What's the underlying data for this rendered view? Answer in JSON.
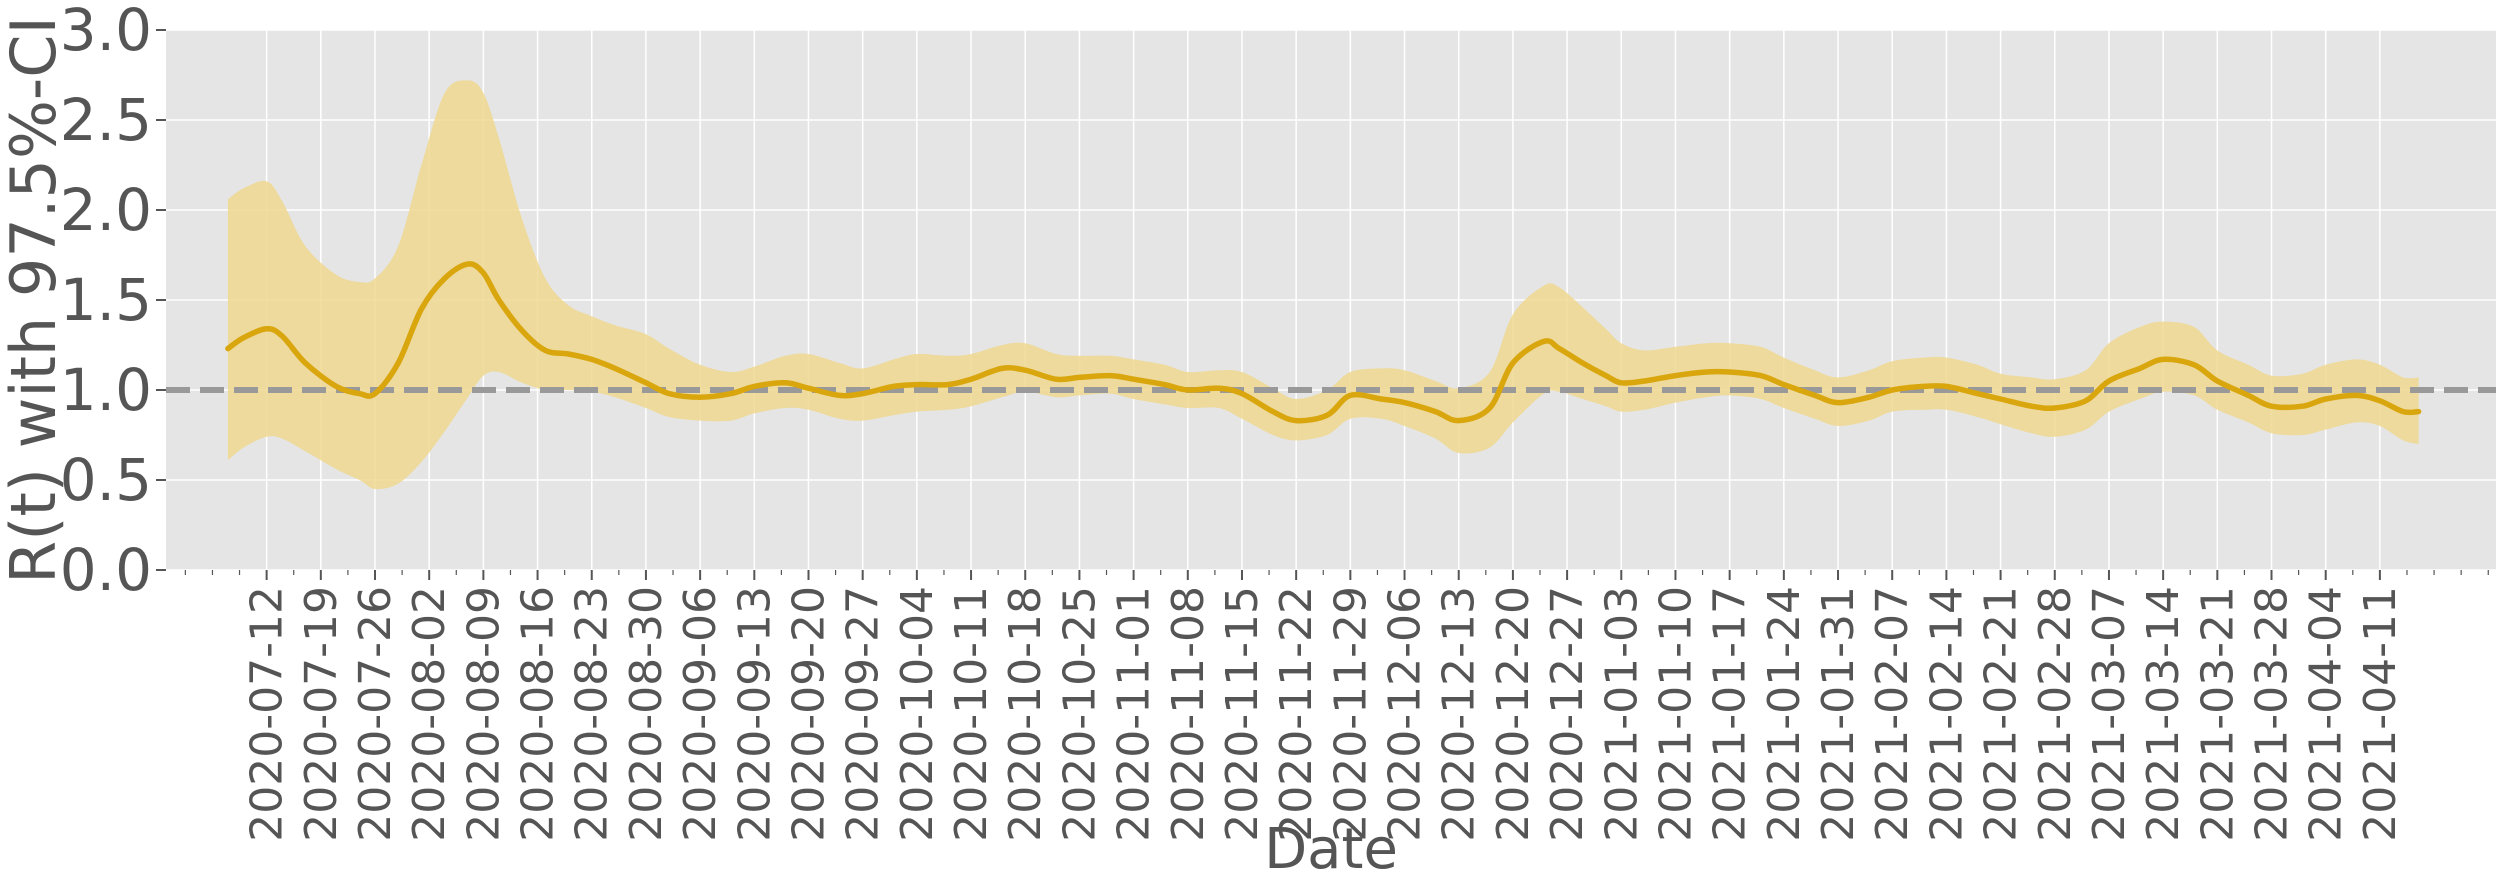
{
  "chart_data": {
    "type": "line",
    "title": "",
    "xlabel": "Date",
    "ylabel": "R(t) with 97.5%-CI",
    "ylim": [
      0,
      3.0
    ],
    "y_ticks": [
      "0.0",
      "0.5",
      "1.0",
      "1.5",
      "2.0",
      "2.5",
      "3.0"
    ],
    "x_ticks": [
      "2020-07-12",
      "2020-07-19",
      "2020-07-26",
      "2020-08-02",
      "2020-08-09",
      "2020-08-16",
      "2020-08-23",
      "2020-08-30",
      "2020-09-06",
      "2020-09-13",
      "2020-09-20",
      "2020-09-27",
      "2020-10-04",
      "2020-10-11",
      "2020-10-18",
      "2020-10-25",
      "2020-11-01",
      "2020-11-08",
      "2020-11-15",
      "2020-11-22",
      "2020-11-29",
      "2020-12-06",
      "2020-12-13",
      "2020-12-20",
      "2020-12-27",
      "2021-01-03",
      "2021-01-10",
      "2021-01-17",
      "2021-01-24",
      "2021-01-31",
      "2021-02-07",
      "2021-02-14",
      "2021-02-21",
      "2021-02-28",
      "2021-03-07",
      "2021-03-14",
      "2021-03-21",
      "2021-03-28",
      "2021-04-04",
      "2021-04-11"
    ],
    "xlim": [
      "2020-06-29",
      "2021-04-26"
    ],
    "reference_line": 1.0,
    "grid": true,
    "series": [
      {
        "x": [
          "2020-07-07",
          "2020-07-09",
          "2020-07-12",
          "2020-07-14",
          "2020-07-17",
          "2020-07-21",
          "2020-07-24",
          "2020-07-26",
          "2020-07-29",
          "2020-08-01",
          "2020-08-04",
          "2020-08-07",
          "2020-08-09",
          "2020-08-11",
          "2020-08-14",
          "2020-08-17",
          "2020-08-20",
          "2020-08-23",
          "2020-08-26",
          "2020-08-30",
          "2020-09-02",
          "2020-09-06",
          "2020-09-10",
          "2020-09-13",
          "2020-09-17",
          "2020-09-20",
          "2020-09-24",
          "2020-09-27",
          "2020-10-01",
          "2020-10-04",
          "2020-10-08",
          "2020-10-11",
          "2020-10-15",
          "2020-10-18",
          "2020-10-22",
          "2020-10-25",
          "2020-10-29",
          "2020-11-01",
          "2020-11-05",
          "2020-11-08",
          "2020-11-12",
          "2020-11-15",
          "2020-11-19",
          "2020-11-22",
          "2020-11-26",
          "2020-11-29",
          "2020-12-03",
          "2020-12-06",
          "2020-12-10",
          "2020-12-13",
          "2020-12-17",
          "2020-12-20",
          "2020-12-24",
          "2020-12-26",
          "2020-12-29",
          "2021-01-01",
          "2021-01-03",
          "2021-01-06",
          "2021-01-10",
          "2021-01-14",
          "2021-01-17",
          "2021-01-21",
          "2021-01-24",
          "2021-01-28",
          "2021-01-31",
          "2021-02-04",
          "2021-02-07",
          "2021-02-11",
          "2021-02-14",
          "2021-02-18",
          "2021-02-21",
          "2021-02-25",
          "2021-02-28",
          "2021-03-04",
          "2021-03-07",
          "2021-03-11",
          "2021-03-14",
          "2021-03-18",
          "2021-03-21",
          "2021-03-25",
          "2021-03-28",
          "2021-04-01",
          "2021-04-04",
          "2021-04-08",
          "2021-04-11",
          "2021-04-14",
          "2021-04-16"
        ],
        "y": [
          1.23,
          1.29,
          1.34,
          1.3,
          1.15,
          1.02,
          0.98,
          0.98,
          1.15,
          1.45,
          1.62,
          1.7,
          1.65,
          1.5,
          1.33,
          1.22,
          1.2,
          1.17,
          1.12,
          1.04,
          0.98,
          0.96,
          0.98,
          1.02,
          1.04,
          1.01,
          0.97,
          0.98,
          1.02,
          1.03,
          1.03,
          1.06,
          1.12,
          1.11,
          1.06,
          1.07,
          1.08,
          1.06,
          1.03,
          1.0,
          1.01,
          0.98,
          0.88,
          0.83,
          0.86,
          0.97,
          0.95,
          0.93,
          0.88,
          0.83,
          0.9,
          1.15,
          1.27,
          1.23,
          1.15,
          1.08,
          1.04,
          1.05,
          1.08,
          1.1,
          1.1,
          1.08,
          1.03,
          0.97,
          0.93,
          0.96,
          1.0,
          1.02,
          1.02,
          0.98,
          0.95,
          0.91,
          0.9,
          0.94,
          1.05,
          1.12,
          1.17,
          1.14,
          1.05,
          0.97,
          0.91,
          0.91,
          0.95,
          0.97,
          0.94,
          0.88,
          0.88
        ],
        "lower": [
          0.61,
          0.68,
          0.74,
          0.73,
          0.66,
          0.56,
          0.5,
          0.45,
          0.48,
          0.6,
          0.77,
          0.96,
          1.08,
          1.1,
          1.04,
          1.0,
          1.0,
          0.99,
          0.96,
          0.9,
          0.85,
          0.83,
          0.83,
          0.87,
          0.9,
          0.89,
          0.84,
          0.83,
          0.86,
          0.88,
          0.89,
          0.91,
          0.96,
          0.99,
          0.96,
          0.97,
          0.98,
          0.95,
          0.92,
          0.9,
          0.9,
          0.84,
          0.75,
          0.72,
          0.75,
          0.84,
          0.84,
          0.8,
          0.73,
          0.65,
          0.68,
          0.82,
          0.98,
          0.99,
          0.95,
          0.91,
          0.88,
          0.89,
          0.93,
          0.96,
          0.97,
          0.95,
          0.9,
          0.84,
          0.8,
          0.83,
          0.88,
          0.89,
          0.89,
          0.85,
          0.81,
          0.76,
          0.74,
          0.78,
          0.88,
          0.95,
          0.99,
          0.97,
          0.89,
          0.82,
          0.76,
          0.75,
          0.78,
          0.82,
          0.8,
          0.72,
          0.7
        ],
        "upper": [
          2.06,
          2.12,
          2.16,
          2.05,
          1.8,
          1.64,
          1.6,
          1.62,
          1.8,
          2.25,
          2.65,
          2.72,
          2.65,
          2.4,
          1.95,
          1.62,
          1.47,
          1.41,
          1.36,
          1.31,
          1.23,
          1.14,
          1.1,
          1.13,
          1.19,
          1.2,
          1.15,
          1.12,
          1.17,
          1.2,
          1.19,
          1.2,
          1.25,
          1.26,
          1.2,
          1.19,
          1.19,
          1.17,
          1.14,
          1.1,
          1.11,
          1.1,
          1.01,
          0.95,
          1.0,
          1.1,
          1.12,
          1.11,
          1.05,
          1.01,
          1.1,
          1.42,
          1.58,
          1.57,
          1.46,
          1.34,
          1.26,
          1.22,
          1.24,
          1.26,
          1.26,
          1.24,
          1.18,
          1.11,
          1.07,
          1.11,
          1.16,
          1.18,
          1.18,
          1.14,
          1.09,
          1.07,
          1.06,
          1.11,
          1.26,
          1.35,
          1.38,
          1.35,
          1.22,
          1.14,
          1.08,
          1.09,
          1.14,
          1.17,
          1.14,
          1.07,
          1.07
        ]
      }
    ],
    "colors": {
      "line": "#d9a60e",
      "band": "#efd88f",
      "reference": "#999999",
      "plot_bg": "#e5e5e5",
      "grid": "#ffffff",
      "text": "#555555"
    }
  }
}
